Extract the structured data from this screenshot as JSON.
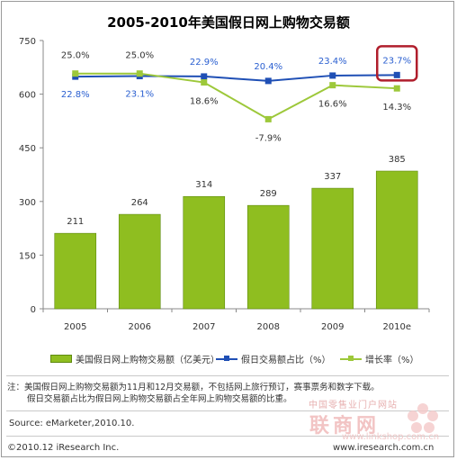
{
  "title": "2005-2010年美国假日网上购物交易额",
  "chart_data": {
    "type": "bar",
    "categories": [
      "2005",
      "2006",
      "2007",
      "2008",
      "2009",
      "2010e"
    ],
    "ylim": [
      0,
      750
    ],
    "yticks": [
      "0",
      "150",
      "300",
      "450",
      "600",
      "750"
    ],
    "bars": {
      "name": "美国假日网上购物交易额（亿美元）",
      "values": [
        211,
        264,
        314,
        289,
        337,
        385
      ],
      "color": "#8fbe20"
    },
    "share_line": {
      "name": "假日交易额占比（%）",
      "values": [
        22.8,
        23.1,
        22.9,
        20.4,
        23.4,
        23.7
      ],
      "labels": [
        "22.8%",
        "23.1%",
        "22.9%",
        "20.4%",
        "23.4%",
        "23.7%"
      ],
      "color": "#1f4fb5",
      "label_color": "#2a5fd0"
    },
    "growth_line": {
      "name": "增长率（%）",
      "values": [
        25.0,
        25.0,
        18.6,
        -7.9,
        16.6,
        14.3
      ],
      "labels": [
        "25.0%",
        "25.0%",
        "18.6%",
        "-7.9%",
        "16.6%",
        "14.3%"
      ],
      "color": "#9dc83a"
    },
    "highlight_color": "#b01e2c",
    "grid": false,
    "legend_position": "bottom"
  },
  "notes": {
    "line1": "注：美国假日网上购物交易额为11月和12月交易额，不包括网上旅行预订，赛事票务和数字下载。",
    "line2": "假日交易额占比为假日网上购物交易额占全年网上购物交易额的比重。"
  },
  "source": "Source: eMarketer,2010.10.",
  "copyright": "©2010.12 iResearch Inc.",
  "site": "www.iresearch.com.cn",
  "watermark": {
    "line1": "中国零售业门户网站",
    "brand": "联商网",
    "url": "www.linkshop.com.cn"
  }
}
